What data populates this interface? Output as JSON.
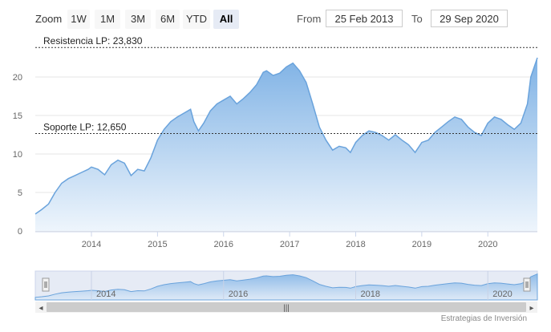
{
  "toolbar": {
    "zoom_label": "Zoom",
    "buttons": [
      "1W",
      "1M",
      "3M",
      "6M",
      "YTD",
      "All"
    ],
    "active_button": "All",
    "from_label": "From",
    "from_value": "25 Feb 2013",
    "to_label": "To",
    "to_value": "29 Sep 2020"
  },
  "chart_data": {
    "type": "area",
    "x_ticks": [
      "2014",
      "2015",
      "2016",
      "2017",
      "2018",
      "2019",
      "2020"
    ],
    "y_ticks": [
      0,
      5,
      10,
      15,
      20
    ],
    "ylim": [
      0,
      25
    ],
    "xlim": [
      2013.15,
      2020.75
    ],
    "grid": true,
    "series": [
      {
        "x": [
          2013.15,
          2013.25,
          2013.35,
          2013.45,
          2013.55,
          2013.65,
          2013.75,
          2013.85,
          2013.95,
          2014.0,
          2014.1,
          2014.2,
          2014.3,
          2014.4,
          2014.5,
          2014.6,
          2014.7,
          2014.8,
          2014.9,
          2015.0,
          2015.1,
          2015.2,
          2015.3,
          2015.4,
          2015.5,
          2015.55,
          2015.62,
          2015.7,
          2015.8,
          2015.9,
          2016.0,
          2016.1,
          2016.2,
          2016.3,
          2016.4,
          2016.5,
          2016.6,
          2016.65,
          2016.75,
          2016.85,
          2016.95,
          2017.05,
          2017.15,
          2017.25,
          2017.35,
          2017.45,
          2017.55,
          2017.65,
          2017.75,
          2017.85,
          2017.92,
          2018.0,
          2018.1,
          2018.2,
          2018.3,
          2018.4,
          2018.5,
          2018.6,
          2018.7,
          2018.8,
          2018.9,
          2019.0,
          2019.1,
          2019.2,
          2019.3,
          2019.4,
          2019.5,
          2019.6,
          2019.7,
          2019.8,
          2019.9,
          2020.0,
          2020.1,
          2020.2,
          2020.3,
          2020.4,
          2020.5,
          2020.6,
          2020.65,
          2020.75
        ],
        "y": [
          2.2,
          2.8,
          3.5,
          5.0,
          6.2,
          6.8,
          7.2,
          7.6,
          8.0,
          8.3,
          8.0,
          7.3,
          8.6,
          9.2,
          8.8,
          7.2,
          8.0,
          7.8,
          9.5,
          11.8,
          13.2,
          14.2,
          14.8,
          15.3,
          15.8,
          14.2,
          13.0,
          14.0,
          15.6,
          16.5,
          17.0,
          17.5,
          16.5,
          17.2,
          18.0,
          19.0,
          20.6,
          20.8,
          20.2,
          20.5,
          21.3,
          21.8,
          20.8,
          19.3,
          16.5,
          13.5,
          11.8,
          10.5,
          11.0,
          10.8,
          10.2,
          11.5,
          12.4,
          13.0,
          12.8,
          12.4,
          11.8,
          12.5,
          11.8,
          11.2,
          10.2,
          11.5,
          11.8,
          12.8,
          13.5,
          14.2,
          14.8,
          14.5,
          13.5,
          12.8,
          12.4,
          14.0,
          14.8,
          14.5,
          13.8,
          13.2,
          14.0,
          16.5,
          20.0,
          22.5
        ]
      }
    ],
    "annotations": [
      {
        "label": "Resistencia LP: 23,830",
        "value": 23.83
      },
      {
        "label": "Soporte LP: 12,650",
        "value": 12.65
      }
    ],
    "colors": {
      "fill_top": "#7fb2e5",
      "fill_bottom": "#eef5fc",
      "line": "#6aa3dc",
      "annotation": "#333333",
      "grid": "#e6e6e6"
    }
  },
  "navigator": {
    "labels": [
      "2014",
      "2016",
      "2018",
      "2020"
    ],
    "scroll_left_glyph": "◂",
    "scroll_right_glyph": "▸",
    "scroll_grip_glyph": "|||"
  },
  "credit": "Estrategias de Inversión"
}
